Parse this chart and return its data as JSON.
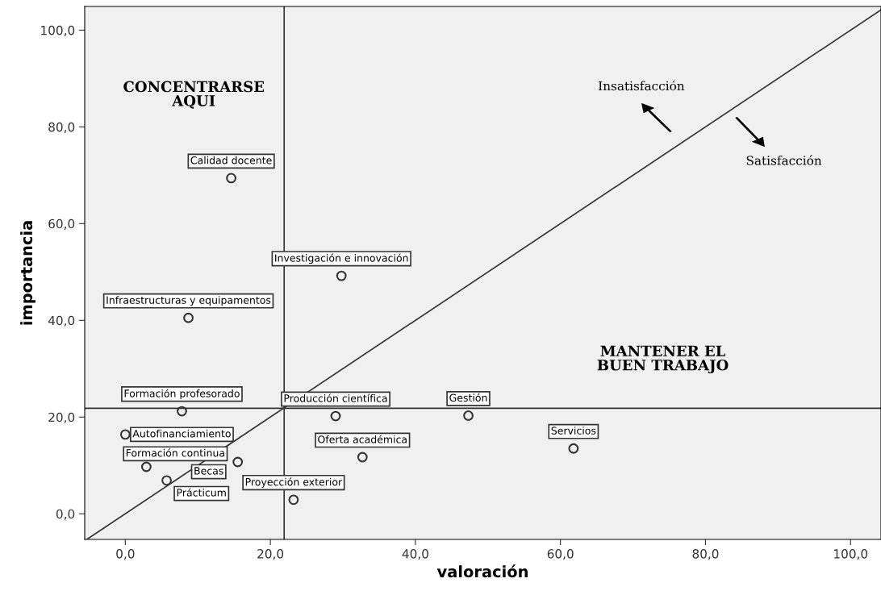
{
  "chart_data": {
    "type": "scatter",
    "xlabel": "valoración",
    "ylabel": "importancia",
    "xlim": [
      -5.6,
      104.2
    ],
    "ylim": [
      -5.3,
      104.9
    ],
    "xticks": [
      {
        "value": 0,
        "label": "0,0"
      },
      {
        "value": 20,
        "label": "20,0"
      },
      {
        "value": 40,
        "label": "40,0"
      },
      {
        "value": 60,
        "label": "60,0"
      },
      {
        "value": 80,
        "label": "80,0"
      },
      {
        "value": 100,
        "label": "100,0"
      }
    ],
    "yticks": [
      {
        "value": 0,
        "label": "0,0"
      },
      {
        "value": 20,
        "label": "20,0"
      },
      {
        "value": 40,
        "label": "40,0"
      },
      {
        "value": 60,
        "label": "60,0"
      },
      {
        "value": 80,
        "label": "80,0"
      },
      {
        "value": 100,
        "label": "100,0"
      }
    ],
    "grid": false,
    "series": [
      {
        "marker": "circle",
        "color": "#333333",
        "x": [
          14.6,
          29.8,
          8.7,
          7.8,
          29.0,
          47.3,
          61.8,
          0.0,
          2.9,
          15.5,
          5.7,
          32.7,
          23.2
        ],
        "values": [
          69.4,
          49.2,
          40.5,
          21.2,
          20.2,
          20.3,
          13.5,
          16.4,
          9.7,
          10.7,
          6.9,
          11.7,
          2.9
        ]
      },
      {
        "type": "line",
        "color": "#333333",
        "x": [
          -5.3,
          104.2
        ],
        "values": [
          -5.3,
          104.2
        ]
      }
    ],
    "ref_lines": [
      {
        "axis": "x",
        "value": 21.9,
        "color": "#333333"
      },
      {
        "axis": "y",
        "value": 21.8,
        "color": "#333333"
      }
    ],
    "annotations": [
      {
        "text": "Calidad docente",
        "x": 14.6,
        "y": 69.4
      },
      {
        "text": "Investigación e innovación",
        "x": 29.8,
        "y": 49.2
      },
      {
        "text": "Infraestructuras y equipamentos",
        "x": 8.7,
        "y": 40.5
      },
      {
        "text": "Formación profesorado",
        "x": 7.8,
        "y": 21.2
      },
      {
        "text": "Producción científica",
        "x": 29.0,
        "y": 20.2
      },
      {
        "text": "Gestión",
        "x": 47.3,
        "y": 20.3
      },
      {
        "text": "Servicios",
        "x": 61.8,
        "y": 13.5
      },
      {
        "text": "Autofinanciamiento",
        "x": 0.0,
        "y": 16.4
      },
      {
        "text": "Formación continua",
        "x": 2.9,
        "y": 9.7
      },
      {
        "text": "Becas",
        "x": 15.5,
        "y": 10.7
      },
      {
        "text": "Prácticum",
        "x": 5.7,
        "y": 6.9
      },
      {
        "text": "Oferta académica",
        "x": 32.7,
        "y": 11.7
      },
      {
        "text": "Proyección exterior",
        "x": 23.2,
        "y": 2.9
      },
      "CONCENTRARSE\nAQUI",
      "MANTENER EL\nBUEN TRABAJO",
      "Insatisfacción",
      "Satisfacción"
    ]
  }
}
